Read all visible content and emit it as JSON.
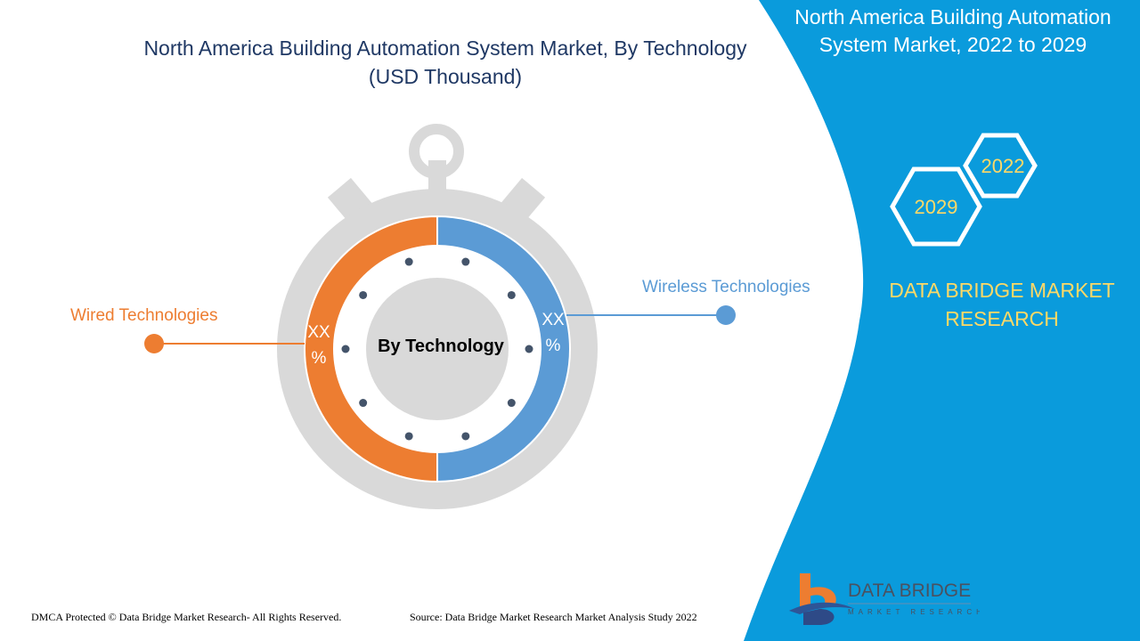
{
  "header": {
    "title": "North America Building Automation System Market, By Technology (USD Thousand)"
  },
  "side_panel": {
    "title": "North America Building Automation System Market, 2022 to 2029",
    "hex_years": [
      "2022",
      "2029"
    ],
    "brand": "DATA BRIDGE MARKET RESEARCH",
    "logo_text": "DATA BRIDGE",
    "logo_subtext": "MARKET RESEARCH",
    "color": "#0a9bdc"
  },
  "chart_data": {
    "type": "pie",
    "title": "North America Building Automation System Market, By Technology (USD Thousand)",
    "center_label": "By Technology",
    "categories": [
      "Wired Technologies",
      "Wireless Technologies"
    ],
    "values": [
      50,
      50
    ],
    "data_labels": [
      "XX %",
      "XX %"
    ],
    "colors": [
      "#ed7d31",
      "#5b9bd5"
    ],
    "legend": "callouts"
  },
  "footer": {
    "copyright": "DMCA Protected © Data Bridge Market Research- All Rights Reserved.",
    "source": "Source: Data Bridge Market Research Market Analysis Study 2022"
  }
}
